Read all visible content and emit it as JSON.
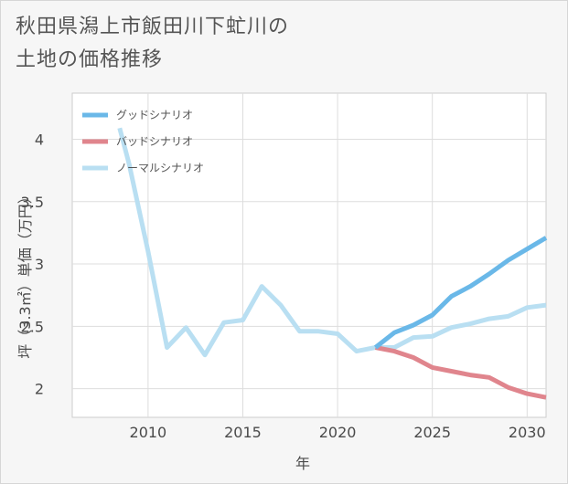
{
  "title_lines": [
    "秋田県潟上市飯田川下虻川の",
    "土地の価格推移"
  ],
  "chart_data": {
    "type": "line",
    "title": "秋田県潟上市飯田川下虻川の土地の価格推移",
    "xlabel": "年",
    "ylabel": "坪（3.3㎡）単価（万円）",
    "xlim": [
      2006,
      2031
    ],
    "ylim": [
      1.77,
      4.37
    ],
    "xticks": [
      2010,
      2015,
      2020,
      2025,
      2030
    ],
    "yticks": [
      2,
      2.5,
      3,
      3.5,
      4
    ],
    "ytick_labels": [
      "2",
      "2.5",
      "3",
      "3.5",
      "4"
    ],
    "grid": true,
    "legend_position": "top-left",
    "series": [
      {
        "name": "グッドシナリオ",
        "color": "#6ab8e8",
        "x": [
          2022,
          2023,
          2024,
          2025,
          2026,
          2027,
          2028,
          2029,
          2030,
          2031
        ],
        "y": [
          2.33,
          2.45,
          2.51,
          2.59,
          2.74,
          2.82,
          2.92,
          3.03,
          3.12,
          3.21
        ]
      },
      {
        "name": "バッドシナリオ",
        "color": "#e0858d",
        "x": [
          2022,
          2023,
          2024,
          2025,
          2026,
          2027,
          2028,
          2029,
          2030,
          2031
        ],
        "y": [
          2.33,
          2.3,
          2.25,
          2.17,
          2.14,
          2.11,
          2.09,
          2.01,
          1.96,
          1.93
        ]
      },
      {
        "name": "ノーマルシナリオ",
        "color": "#b9dff2",
        "x": [
          2008.5,
          2009,
          2010,
          2011,
          2012,
          2013,
          2014,
          2015,
          2016,
          2017,
          2018,
          2019,
          2020,
          2021,
          2022,
          2023,
          2024,
          2025,
          2026,
          2027,
          2028,
          2029,
          2030,
          2031
        ],
        "y": [
          4.09,
          3.8,
          3.1,
          2.33,
          2.49,
          2.27,
          2.53,
          2.55,
          2.82,
          2.67,
          2.46,
          2.46,
          2.44,
          2.3,
          2.33,
          2.33,
          2.41,
          2.42,
          2.49,
          2.52,
          2.56,
          2.58,
          2.65,
          2.67
        ]
      }
    ]
  }
}
